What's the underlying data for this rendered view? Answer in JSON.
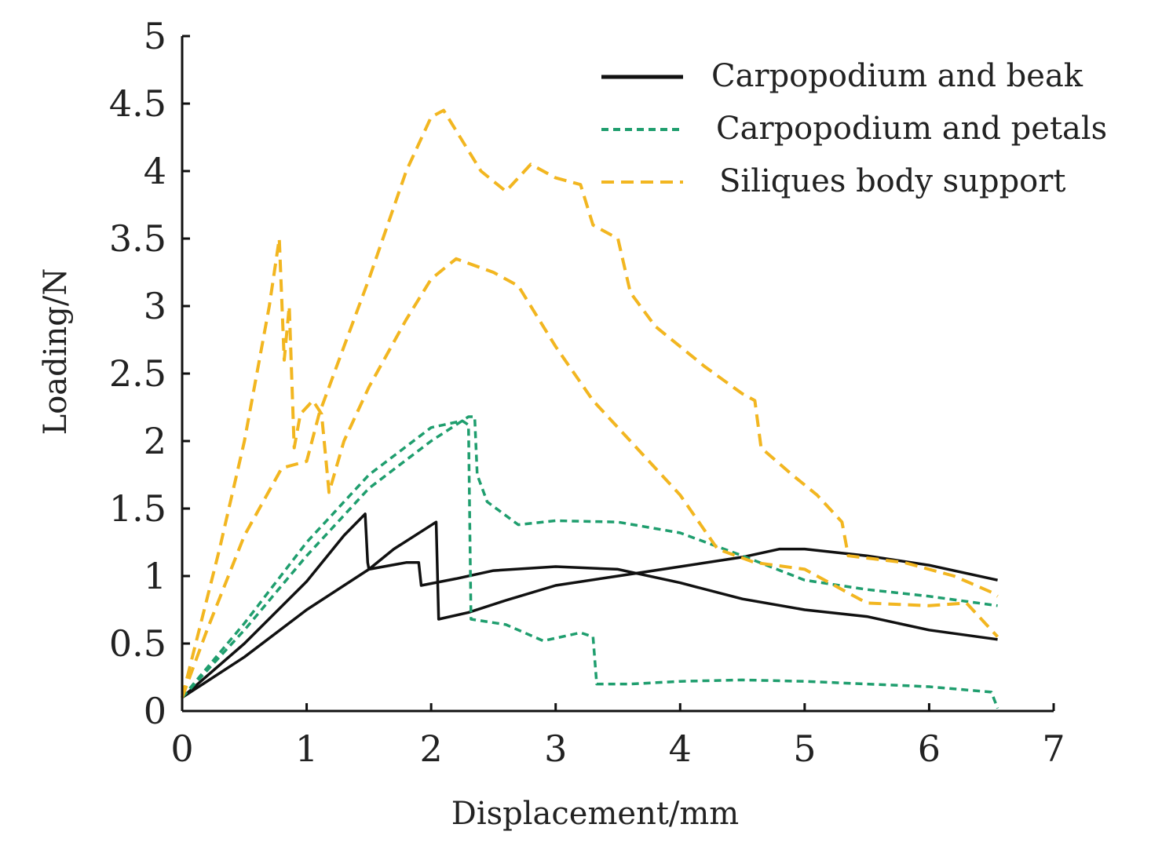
{
  "chart_data": {
    "type": "line",
    "xlabel": "Displacement/mm",
    "ylabel": "Loading/N",
    "xlim": [
      0,
      7
    ],
    "ylim": [
      0,
      5
    ],
    "xticks": [
      "0",
      "1",
      "2",
      "3",
      "4",
      "5",
      "6",
      "7"
    ],
    "yticks": [
      "0",
      "0.5",
      "1",
      "1.5",
      "2",
      "2.5",
      "3",
      "3.5",
      "4",
      "4.5",
      "5"
    ],
    "grid": false,
    "legend_position": "top-right",
    "colors": {
      "beak": "#111111",
      "petals": "#1f9e6e",
      "support": "#f2b620"
    },
    "legend": [
      {
        "label": "Carpopodium and beak",
        "color": "#111111",
        "style": "solid"
      },
      {
        "label": "Carpopodium and petals",
        "color": "#1f9e6e",
        "style": "dashed"
      },
      {
        "label": "Siliques body support",
        "color": "#f2b620",
        "style": "dashed"
      }
    ],
    "series": [
      {
        "group": "beak",
        "color": "#111111",
        "style": "solid",
        "points": [
          [
            0,
            0.1
          ],
          [
            0.5,
            0.5
          ],
          [
            1,
            0.96
          ],
          [
            1.3,
            1.3
          ],
          [
            1.47,
            1.46
          ],
          [
            1.49,
            1.1
          ],
          [
            1.5,
            1.05
          ],
          [
            1.7,
            1.2
          ],
          [
            2.04,
            1.4
          ],
          [
            2.06,
            0.68
          ],
          [
            2.3,
            0.73
          ],
          [
            2.6,
            0.82
          ],
          [
            3,
            0.93
          ],
          [
            3.5,
            1.0
          ],
          [
            4,
            1.07
          ],
          [
            4.5,
            1.14
          ],
          [
            4.8,
            1.2
          ],
          [
            5,
            1.2
          ],
          [
            5.5,
            1.15
          ],
          [
            6,
            1.08
          ],
          [
            6.55,
            0.97
          ]
        ]
      },
      {
        "group": "beak",
        "color": "#111111",
        "style": "solid",
        "points": [
          [
            0,
            0.1
          ],
          [
            0.5,
            0.4
          ],
          [
            1,
            0.75
          ],
          [
            1.5,
            1.05
          ],
          [
            1.8,
            1.1
          ],
          [
            1.9,
            1.1
          ],
          [
            1.92,
            0.93
          ],
          [
            2.2,
            0.98
          ],
          [
            2.5,
            1.04
          ],
          [
            3,
            1.07
          ],
          [
            3.5,
            1.05
          ],
          [
            4,
            0.95
          ],
          [
            4.5,
            0.83
          ],
          [
            5,
            0.75
          ],
          [
            5.5,
            0.7
          ],
          [
            6,
            0.6
          ],
          [
            6.55,
            0.53
          ]
        ]
      },
      {
        "group": "petals",
        "color": "#1f9e6e",
        "style": "dashed",
        "points": [
          [
            0,
            0.1
          ],
          [
            0.5,
            0.6
          ],
          [
            1,
            1.15
          ],
          [
            1.5,
            1.65
          ],
          [
            2,
            2.0
          ],
          [
            2.3,
            2.18
          ],
          [
            2.35,
            2.18
          ],
          [
            2.37,
            1.75
          ],
          [
            2.45,
            1.55
          ],
          [
            2.7,
            1.38
          ],
          [
            3,
            1.41
          ],
          [
            3.5,
            1.4
          ],
          [
            4,
            1.32
          ],
          [
            4.5,
            1.15
          ],
          [
            5,
            0.97
          ],
          [
            5.5,
            0.9
          ],
          [
            6,
            0.85
          ],
          [
            6.55,
            0.78
          ]
        ]
      },
      {
        "group": "petals",
        "color": "#1f9e6e",
        "style": "dashed",
        "points": [
          [
            0,
            0.1
          ],
          [
            0.5,
            0.65
          ],
          [
            1,
            1.25
          ],
          [
            1.5,
            1.75
          ],
          [
            2,
            2.1
          ],
          [
            2.25,
            2.15
          ],
          [
            2.3,
            2.12
          ],
          [
            2.32,
            0.68
          ],
          [
            2.6,
            0.64
          ],
          [
            2.9,
            0.52
          ],
          [
            3.2,
            0.58
          ],
          [
            3.3,
            0.55
          ],
          [
            3.33,
            0.2
          ],
          [
            3.6,
            0.2
          ],
          [
            4,
            0.22
          ],
          [
            4.5,
            0.23
          ],
          [
            5,
            0.22
          ],
          [
            5.5,
            0.2
          ],
          [
            6,
            0.18
          ],
          [
            6.5,
            0.14
          ],
          [
            6.55,
            0.02
          ]
        ]
      },
      {
        "group": "support",
        "color": "#f2b620",
        "style": "dashed",
        "points": [
          [
            0,
            0.1
          ],
          [
            0.3,
            1.2
          ],
          [
            0.5,
            2.0
          ],
          [
            0.7,
            3.0
          ],
          [
            0.78,
            3.5
          ],
          [
            0.82,
            2.6
          ],
          [
            0.86,
            3.0
          ],
          [
            0.9,
            1.95
          ],
          [
            0.95,
            2.2
          ],
          [
            1.05,
            2.3
          ],
          [
            1.12,
            2.2
          ],
          [
            1.18,
            1.62
          ],
          [
            1.3,
            2.0
          ],
          [
            1.5,
            2.4
          ],
          [
            1.8,
            2.9
          ],
          [
            2.0,
            3.2
          ],
          [
            2.2,
            3.35
          ],
          [
            2.5,
            3.25
          ],
          [
            2.7,
            3.15
          ],
          [
            3,
            2.7
          ],
          [
            3.3,
            2.3
          ],
          [
            3.6,
            2.0
          ],
          [
            4,
            1.6
          ],
          [
            4.3,
            1.2
          ],
          [
            4.6,
            1.1
          ],
          [
            5,
            1.05
          ],
          [
            5.5,
            0.8
          ],
          [
            6,
            0.78
          ],
          [
            6.3,
            0.8
          ],
          [
            6.4,
            0.7
          ],
          [
            6.5,
            0.6
          ],
          [
            6.55,
            0.55
          ]
        ]
      },
      {
        "group": "support",
        "color": "#f2b620",
        "style": "dashed",
        "points": [
          [
            0,
            0.1
          ],
          [
            0.2,
            0.6
          ],
          [
            0.5,
            1.3
          ],
          [
            0.8,
            1.8
          ],
          [
            1.0,
            1.85
          ],
          [
            1.1,
            2.2
          ],
          [
            1.3,
            2.7
          ],
          [
            1.5,
            3.2
          ],
          [
            1.8,
            4.0
          ],
          [
            2.0,
            4.4
          ],
          [
            2.1,
            4.45
          ],
          [
            2.2,
            4.3
          ],
          [
            2.4,
            4.0
          ],
          [
            2.6,
            3.85
          ],
          [
            2.8,
            4.05
          ],
          [
            3.0,
            3.95
          ],
          [
            3.2,
            3.9
          ],
          [
            3.3,
            3.6
          ],
          [
            3.5,
            3.5
          ],
          [
            3.6,
            3.1
          ],
          [
            3.8,
            2.85
          ],
          [
            4.0,
            2.7
          ],
          [
            4.2,
            2.55
          ],
          [
            4.5,
            2.35
          ],
          [
            4.6,
            2.3
          ],
          [
            4.65,
            1.95
          ],
          [
            4.9,
            1.75
          ],
          [
            5.1,
            1.6
          ],
          [
            5.3,
            1.4
          ],
          [
            5.35,
            1.15
          ],
          [
            5.8,
            1.1
          ],
          [
            6.2,
            1.0
          ],
          [
            6.5,
            0.88
          ],
          [
            6.55,
            0.85
          ]
        ]
      }
    ]
  }
}
